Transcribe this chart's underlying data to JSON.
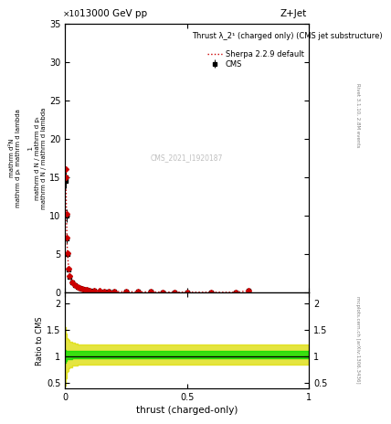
{
  "title_top": "13000 GeV pp",
  "title_right": "Z+Jet",
  "plot_title": "Thrust λ_2¹ (charged only) (CMS jet substructure)",
  "cms_label": "CMS_2021_I1920187",
  "rivet_label": "Rivet 3.1.10, 2.8M events",
  "mcplots_label": "mcplots.cern.ch [arXiv:1306.3436]",
  "xlabel": "thrust (charged-only)",
  "ylabel_ratio": "Ratio to CMS",
  "xlim": [
    0.0,
    1.0
  ],
  "ylim_main": [
    0,
    35
  ],
  "ylim_ratio": [
    0.4,
    2.2
  ],
  "yticks_main": [
    0,
    5,
    10,
    15,
    20,
    25,
    30,
    35
  ],
  "yticks_ratio": [
    0.5,
    1.0,
    1.5,
    2.0
  ],
  "cms_x": [
    0.002,
    0.004,
    0.006,
    0.008,
    0.01,
    0.015,
    0.02,
    0.03,
    0.04,
    0.05,
    0.06,
    0.07,
    0.08,
    0.09,
    0.1,
    0.12,
    0.14,
    0.16,
    0.18,
    0.2,
    0.25,
    0.3,
    0.35,
    0.4,
    0.45,
    0.5,
    0.6,
    0.7,
    0.75
  ],
  "cms_y": [
    15.0,
    14.5,
    10.0,
    7.0,
    5.0,
    3.0,
    2.0,
    1.3,
    0.9,
    0.7,
    0.55,
    0.45,
    0.38,
    0.32,
    0.27,
    0.2,
    0.16,
    0.13,
    0.11,
    0.09,
    0.07,
    0.055,
    0.045,
    0.035,
    0.025,
    0.02,
    0.014,
    0.01,
    0.18
  ],
  "cms_err": [
    1.0,
    1.0,
    0.8,
    0.6,
    0.4,
    0.3,
    0.2,
    0.15,
    0.1,
    0.08,
    0.06,
    0.05,
    0.04,
    0.035,
    0.03,
    0.025,
    0.02,
    0.018,
    0.015,
    0.012,
    0.01,
    0.008,
    0.007,
    0.006,
    0.005,
    0.004,
    0.003,
    0.002,
    0.05
  ],
  "sherpa_x": [
    0.002,
    0.004,
    0.006,
    0.008,
    0.01,
    0.015,
    0.02,
    0.03,
    0.04,
    0.05,
    0.06,
    0.07,
    0.08,
    0.09,
    0.1,
    0.12,
    0.14,
    0.16,
    0.18,
    0.2,
    0.25,
    0.3,
    0.35,
    0.4,
    0.45,
    0.5,
    0.6,
    0.7,
    0.75
  ],
  "sherpa_y": [
    16.0,
    15.0,
    10.2,
    7.1,
    5.1,
    3.1,
    2.1,
    1.35,
    0.95,
    0.72,
    0.57,
    0.47,
    0.39,
    0.33,
    0.28,
    0.21,
    0.165,
    0.135,
    0.112,
    0.093,
    0.072,
    0.057,
    0.047,
    0.037,
    0.027,
    0.021,
    0.015,
    0.011,
    0.19
  ],
  "ratio_x": [
    0.0,
    0.002,
    0.004,
    0.006,
    0.008,
    0.01,
    0.015,
    0.02,
    0.03,
    0.04,
    0.05,
    0.06,
    0.07,
    0.08,
    0.09,
    0.1,
    0.12,
    0.14,
    0.16,
    0.18,
    0.2,
    0.25,
    0.3,
    0.35,
    0.4,
    0.45,
    0.5,
    0.6,
    0.7,
    0.75,
    1.0
  ],
  "ratio_green_lo": [
    0.88,
    0.88,
    0.92,
    0.93,
    0.94,
    0.94,
    0.95,
    0.95,
    0.96,
    0.96,
    0.96,
    0.97,
    0.97,
    0.97,
    0.97,
    0.97,
    0.97,
    0.97,
    0.97,
    0.97,
    0.97,
    0.97,
    0.97,
    0.97,
    0.97,
    0.97,
    0.97,
    0.97,
    0.97,
    0.97,
    0.97
  ],
  "ratio_green_hi": [
    1.12,
    1.12,
    1.1,
    1.1,
    1.1,
    1.1,
    1.1,
    1.1,
    1.1,
    1.1,
    1.1,
    1.1,
    1.1,
    1.1,
    1.1,
    1.1,
    1.1,
    1.1,
    1.1,
    1.1,
    1.1,
    1.1,
    1.1,
    1.1,
    1.1,
    1.1,
    1.1,
    1.1,
    1.1,
    1.1,
    1.1
  ],
  "ratio_yellow_lo": [
    0.45,
    0.45,
    0.58,
    0.65,
    0.7,
    0.73,
    0.78,
    0.8,
    0.82,
    0.83,
    0.84,
    0.85,
    0.85,
    0.85,
    0.85,
    0.85,
    0.85,
    0.85,
    0.85,
    0.85,
    0.85,
    0.85,
    0.85,
    0.85,
    0.85,
    0.85,
    0.85,
    0.85,
    0.85,
    0.85,
    0.85
  ],
  "ratio_yellow_hi": [
    1.55,
    1.55,
    1.42,
    1.38,
    1.35,
    1.32,
    1.3,
    1.28,
    1.26,
    1.24,
    1.23,
    1.22,
    1.22,
    1.22,
    1.22,
    1.22,
    1.22,
    1.22,
    1.22,
    1.22,
    1.22,
    1.22,
    1.22,
    1.22,
    1.22,
    1.22,
    1.22,
    1.22,
    1.22,
    1.22,
    1.22
  ],
  "color_cms": "#000000",
  "color_sherpa": "#cc0000",
  "color_green": "#00dd00",
  "color_yellow": "#dddd00",
  "bg_color": "#ffffff"
}
